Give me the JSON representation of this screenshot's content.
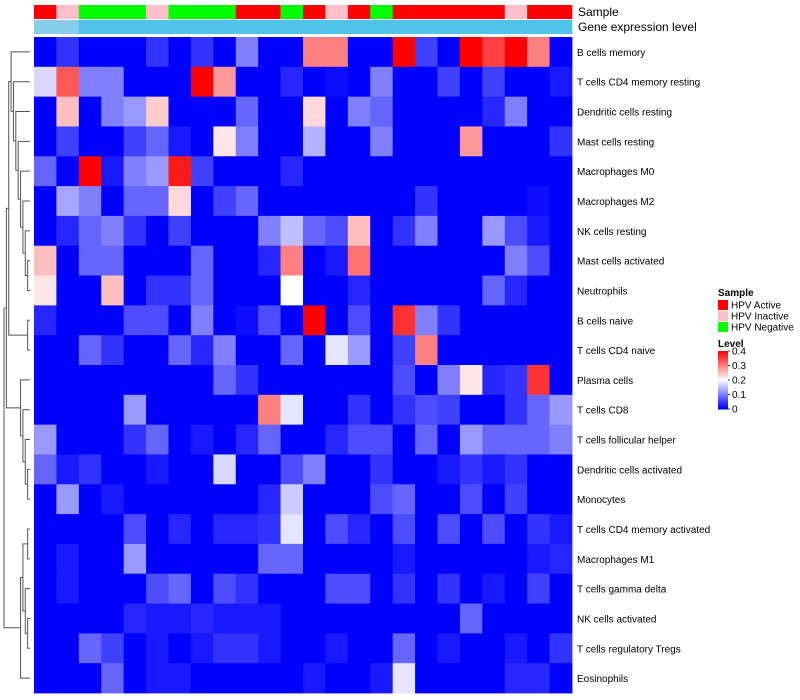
{
  "chart_data": {
    "type": "heatmap",
    "annotation_tracks": {
      "sample_label": "Sample",
      "gene_label": "Gene expression level",
      "sample": [
        "HPV Active",
        "HPV Inactive",
        "HPV Negative",
        "HPV Negative",
        "HPV Negative",
        "HPV Inactive",
        "HPV Negative",
        "HPV Negative",
        "HPV Negative",
        "HPV Active",
        "HPV Active",
        "HPV Negative",
        "HPV Active",
        "HPV Inactive",
        "HPV Active",
        "HPV Negative",
        "HPV Active",
        "HPV Active",
        "HPV Active",
        "HPV Active",
        "HPV Active",
        "HPV Inactive",
        "HPV Active",
        "HPV Active"
      ],
      "gene_level": [
        "high",
        "high",
        "low",
        "low",
        "low",
        "low",
        "low",
        "low",
        "low",
        "low",
        "low",
        "low",
        "low",
        "low",
        "low",
        "low",
        "low",
        "low",
        "low",
        "low",
        "low",
        "low",
        "low",
        "low"
      ]
    },
    "rows": [
      "B cells memory",
      "T cells CD4 memory resting",
      "Dendritic cells resting",
      "Mast cells resting",
      "Macrophages M0",
      "Macrophages M2",
      "NK cells resting",
      "Mast cells activated",
      "Neutrophils",
      "B cells naive",
      "T cells CD4 naive",
      "Plasma cells",
      "T cells CD8",
      "T cells follicular helper",
      "Dendritic cells activated",
      "Monocytes",
      "T cells CD4 memory activated",
      "Macrophages M1",
      "T cells gamma delta",
      "NK cells activated",
      "T cells regulatory  Tregs",
      "Eosinophils"
    ],
    "values": [
      [
        0.0,
        0.04,
        0.0,
        0.0,
        0.0,
        0.04,
        0.0,
        0.04,
        0.0,
        0.1,
        0.0,
        0.0,
        0.3,
        0.3,
        0.0,
        0.0,
        0.4,
        0.05,
        0.0,
        0.4,
        0.35,
        0.4,
        0.3,
        0.0
      ],
      [
        0.17,
        0.33,
        0.1,
        0.1,
        0.0,
        0.0,
        0.0,
        0.4,
        0.28,
        0.0,
        0.0,
        0.03,
        0.0,
        0.01,
        0.0,
        0.1,
        0.0,
        0.0,
        0.05,
        0.0,
        0.05,
        0.0,
        0.0,
        0.02
      ],
      [
        0.0,
        0.25,
        0.0,
        0.1,
        0.12,
        0.24,
        0.0,
        0.0,
        0.0,
        0.08,
        0.0,
        0.0,
        0.23,
        0.0,
        0.1,
        0.08,
        0.0,
        0.0,
        0.0,
        0.0,
        0.03,
        0.1,
        0.0,
        0.0
      ],
      [
        0.0,
        0.05,
        0.0,
        0.0,
        0.05,
        0.08,
        0.02,
        0.0,
        0.22,
        0.1,
        0.0,
        0.0,
        0.14,
        0.0,
        0.0,
        0.1,
        0.0,
        0.0,
        0.0,
        0.28,
        0.0,
        0.0,
        0.0,
        0.04
      ],
      [
        0.08,
        0.0,
        0.4,
        0.02,
        0.1,
        0.12,
        0.38,
        0.05,
        0.0,
        0.0,
        0.0,
        0.03,
        0.0,
        0.0,
        0.0,
        0.0,
        0.0,
        0.0,
        0.0,
        0.0,
        0.0,
        0.0,
        0.0,
        0.0
      ],
      [
        0.0,
        0.13,
        0.1,
        0.0,
        0.08,
        0.08,
        0.23,
        0.0,
        0.05,
        0.08,
        0.0,
        0.0,
        0.0,
        0.0,
        0.0,
        0.0,
        0.0,
        0.04,
        0.0,
        0.0,
        0.0,
        0.0,
        0.01,
        0.0
      ],
      [
        0.0,
        0.03,
        0.08,
        0.1,
        0.04,
        0.0,
        0.05,
        0.0,
        0.0,
        0.0,
        0.1,
        0.15,
        0.08,
        0.06,
        0.25,
        0.0,
        0.04,
        0.1,
        0.0,
        0.0,
        0.12,
        0.06,
        0.02,
        0.0
      ],
      [
        0.25,
        0.0,
        0.08,
        0.08,
        0.0,
        0.0,
        0.0,
        0.08,
        0.0,
        0.0,
        0.03,
        0.3,
        0.0,
        0.02,
        0.31,
        0.0,
        0.0,
        0.0,
        0.0,
        0.0,
        0.0,
        0.1,
        0.06,
        0.0
      ],
      [
        0.22,
        0.0,
        0.0,
        0.25,
        0.0,
        0.04,
        0.04,
        0.08,
        0.0,
        0.0,
        0.0,
        0.2,
        0.0,
        0.0,
        0.03,
        0.0,
        0.0,
        0.0,
        0.0,
        0.0,
        0.08,
        0.03,
        0.0,
        0.0
      ],
      [
        0.03,
        0.0,
        0.0,
        0.0,
        0.06,
        0.06,
        0.0,
        0.1,
        0.0,
        0.01,
        0.06,
        0.0,
        0.4,
        0.0,
        0.06,
        0.0,
        0.36,
        0.1,
        0.04,
        0.0,
        0.0,
        0.0,
        0.0,
        0.0
      ],
      [
        0.0,
        0.0,
        0.08,
        0.04,
        0.0,
        0.0,
        0.08,
        0.03,
        0.1,
        0.0,
        0.0,
        0.08,
        0.0,
        0.18,
        0.12,
        0.0,
        0.05,
        0.3,
        0.0,
        0.0,
        0.0,
        0.0,
        0.0,
        0.0
      ],
      [
        0.0,
        0.0,
        0.0,
        0.0,
        0.0,
        0.0,
        0.0,
        0.0,
        0.08,
        0.04,
        0.0,
        0.0,
        0.0,
        0.0,
        0.0,
        0.0,
        0.06,
        0.0,
        0.1,
        0.22,
        0.03,
        0.04,
        0.36,
        0.0
      ],
      [
        0.0,
        0.0,
        0.0,
        0.0,
        0.12,
        0.0,
        0.0,
        0.0,
        0.0,
        0.0,
        0.3,
        0.18,
        0.0,
        0.0,
        0.04,
        0.0,
        0.04,
        0.06,
        0.05,
        0.0,
        0.0,
        0.04,
        0.08,
        0.12
      ],
      [
        0.12,
        0.0,
        0.0,
        0.0,
        0.04,
        0.08,
        0.0,
        0.02,
        0.0,
        0.03,
        0.08,
        0.0,
        0.0,
        0.03,
        0.06,
        0.06,
        0.0,
        0.08,
        0.0,
        0.12,
        0.08,
        0.08,
        0.08,
        0.1
      ],
      [
        0.08,
        0.02,
        0.04,
        0.0,
        0.0,
        0.02,
        0.0,
        0.0,
        0.17,
        0.0,
        0.0,
        0.06,
        0.1,
        0.0,
        0.0,
        0.04,
        0.0,
        0.0,
        0.02,
        0.04,
        0.02,
        0.04,
        0.0,
        0.0
      ],
      [
        0.0,
        0.12,
        0.0,
        0.02,
        0.0,
        0.0,
        0.0,
        0.0,
        0.0,
        0.0,
        0.03,
        0.16,
        0.0,
        0.0,
        0.0,
        0.06,
        0.08,
        0.0,
        0.0,
        0.06,
        0.0,
        0.05,
        0.0,
        0.0
      ],
      [
        0.0,
        0.0,
        0.0,
        0.0,
        0.06,
        0.0,
        0.03,
        0.0,
        0.03,
        0.03,
        0.04,
        0.18,
        0.0,
        0.06,
        0.03,
        0.0,
        0.06,
        0.0,
        0.06,
        0.0,
        0.06,
        0.0,
        0.04,
        0.02
      ],
      [
        0.0,
        0.02,
        0.0,
        0.0,
        0.12,
        0.0,
        0.0,
        0.0,
        0.0,
        0.0,
        0.08,
        0.08,
        0.0,
        0.0,
        0.0,
        0.0,
        0.02,
        0.0,
        0.0,
        0.0,
        0.0,
        0.0,
        0.02,
        0.03
      ],
      [
        0.0,
        0.02,
        0.0,
        0.0,
        0.0,
        0.06,
        0.08,
        0.0,
        0.06,
        0.04,
        0.0,
        0.0,
        0.0,
        0.06,
        0.06,
        0.0,
        0.04,
        0.0,
        0.04,
        0.0,
        0.02,
        0.0,
        0.05,
        0.0
      ],
      [
        0.0,
        0.0,
        0.0,
        0.0,
        0.03,
        0.02,
        0.02,
        0.03,
        0.02,
        0.02,
        0.02,
        0.0,
        0.0,
        0.0,
        0.0,
        0.0,
        0.0,
        0.0,
        0.0,
        0.08,
        0.0,
        0.0,
        0.0,
        0.0
      ],
      [
        0.0,
        0.0,
        0.08,
        0.05,
        0.0,
        0.02,
        0.0,
        0.02,
        0.04,
        0.04,
        0.02,
        0.0,
        0.0,
        0.02,
        0.0,
        0.0,
        0.08,
        0.0,
        0.02,
        0.0,
        0.0,
        0.02,
        0.0,
        0.04
      ],
      [
        0.0,
        0.0,
        0.0,
        0.08,
        0.0,
        0.02,
        0.02,
        0.0,
        0.0,
        0.0,
        0.0,
        0.0,
        0.02,
        0.0,
        0.0,
        0.02,
        0.18,
        0.0,
        0.0,
        0.0,
        0.0,
        0.03,
        0.03,
        0.0
      ]
    ],
    "color_scale": {
      "min": 0,
      "mid": 0.2,
      "max": 0.4,
      "low_color": "#0000ff",
      "mid_color": "#ffffff",
      "high_color": "#ff0000"
    },
    "annotation_colors": {
      "HPV Active": "#ff0000",
      "HPV Inactive": "#ffc0cb",
      "HPV Negative": "#00ff00",
      "high": "#87ceeb",
      "low": "#4fc3ea"
    },
    "legend": {
      "sample_title": "Sample",
      "sample_entries": [
        "HPV Active",
        "HPV Inactive",
        "HPV Negative"
      ],
      "level_title": "Level",
      "level_ticks": [
        0.4,
        0.3,
        0.2,
        0.1,
        0
      ],
      "level_tick_labels": [
        "0.4",
        "0.3",
        "0.2",
        "0.1",
        "0"
      ]
    },
    "clustering": "rows clustered (dendrogram on left)"
  }
}
